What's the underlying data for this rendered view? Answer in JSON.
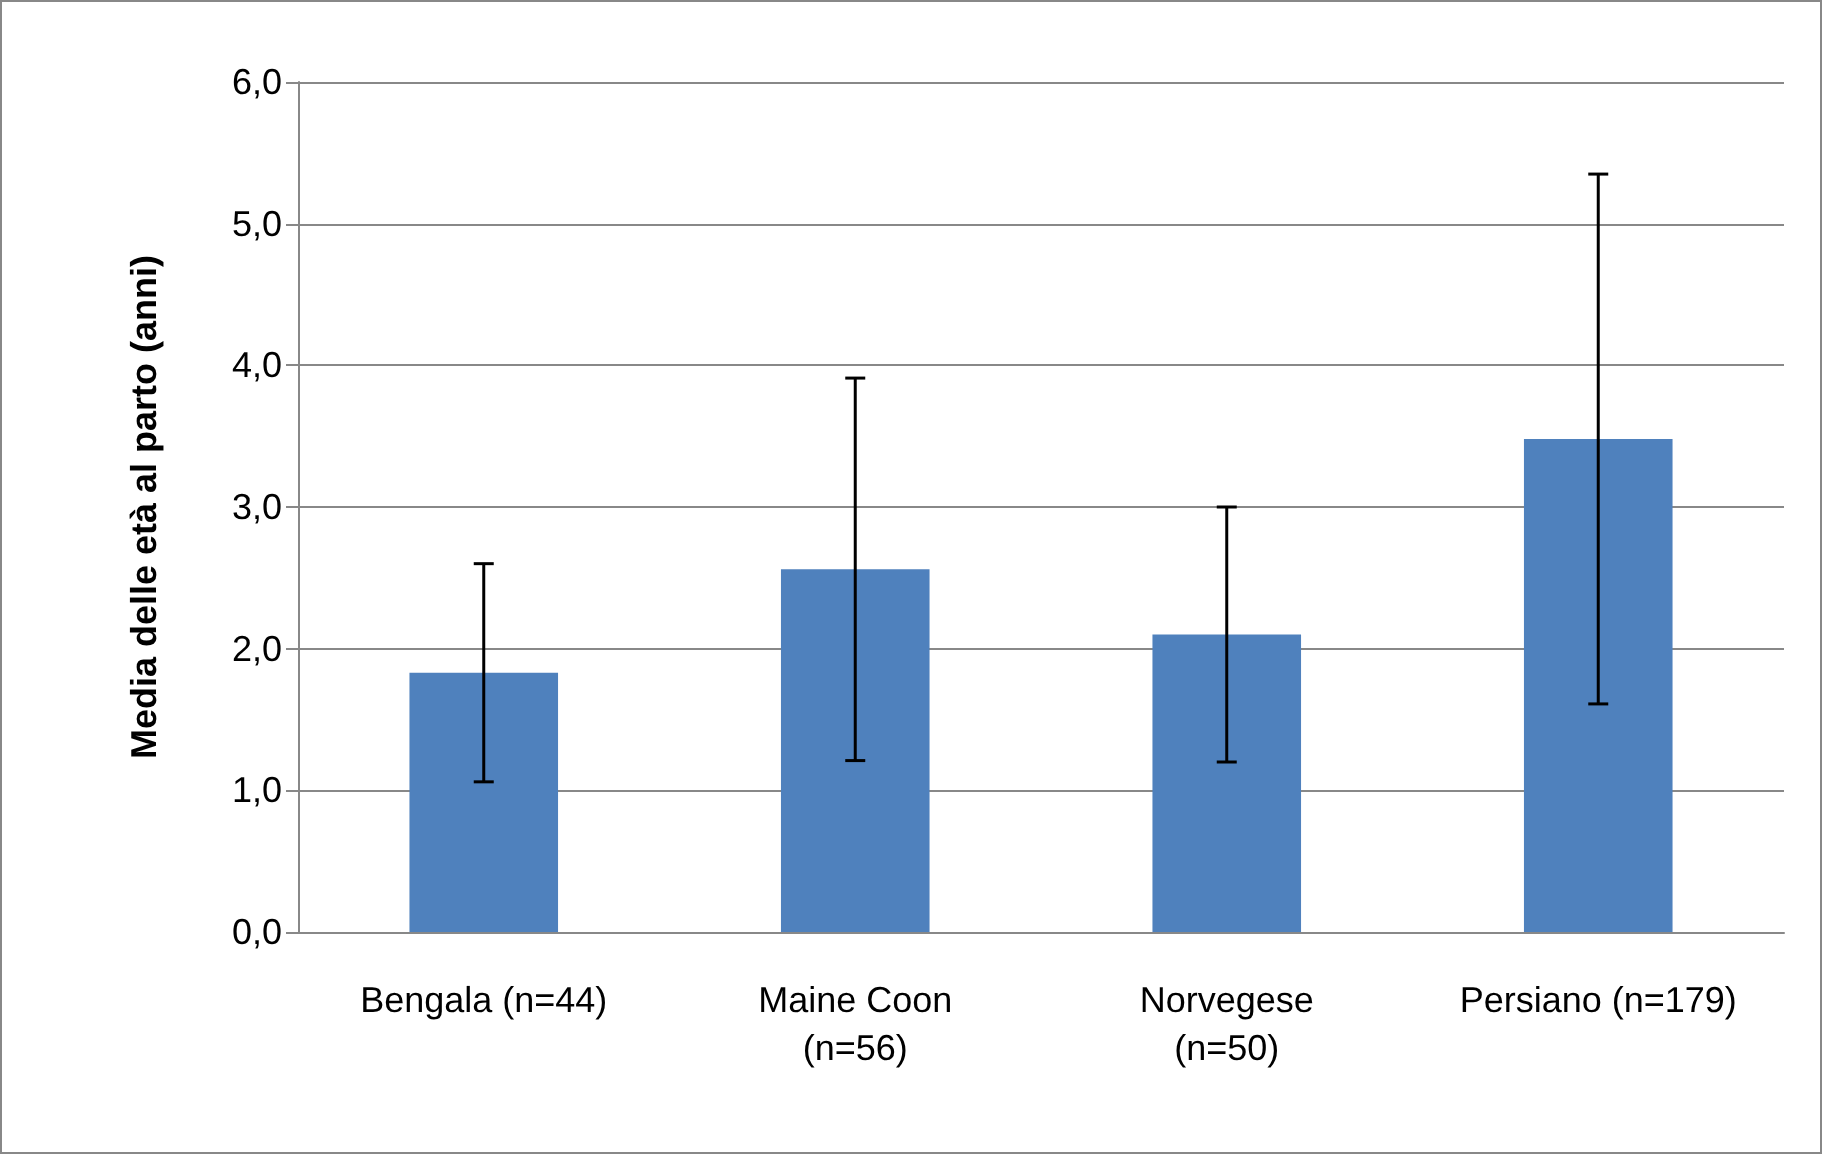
{
  "chart_data": {
    "type": "bar",
    "ylabel": "Media delle età al parto (anni)",
    "categories": [
      "Bengala (n=44)",
      "Maine Coon\n(n=56)",
      "Norvegese\n(n=50)",
      "Persiano (n=179)"
    ],
    "values": [
      1.83,
      2.56,
      2.1,
      3.48
    ],
    "color": "#4f81bd",
    "errors": [
      0.77,
      1.35,
      0.9,
      1.87
    ],
    "ylim": [
      0,
      6
    ],
    "yticks": [
      {
        "value": 0,
        "label": "0,0"
      },
      {
        "value": 1,
        "label": "1,0"
      },
      {
        "value": 2,
        "label": "2,0"
      },
      {
        "value": 3,
        "label": "3,0"
      },
      {
        "value": 4,
        "label": "4,0"
      },
      {
        "value": 5,
        "label": "5,0"
      },
      {
        "value": 6,
        "label": "6,0"
      }
    ],
    "grid": true
  }
}
